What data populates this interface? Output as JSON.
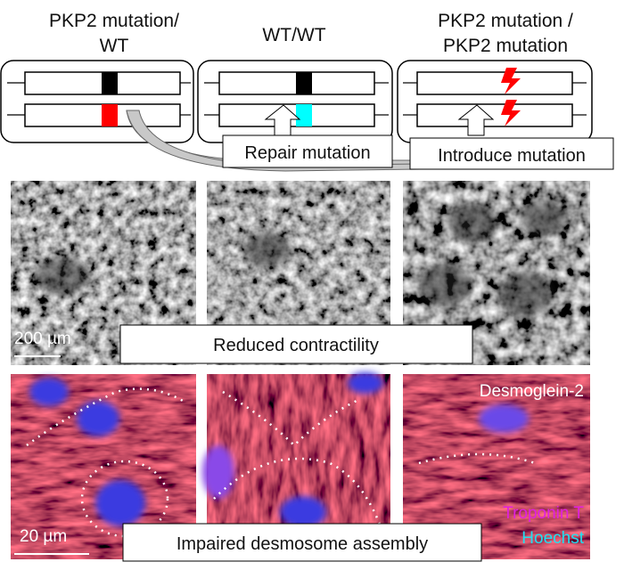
{
  "header": {
    "columns": [
      {
        "lines": [
          "PKP2 mutation/",
          "WT"
        ]
      },
      {
        "lines": [
          "WT/WT"
        ]
      },
      {
        "lines": [
          "PKP2 mutation /",
          "PKP2 mutation"
        ]
      }
    ]
  },
  "labels": {
    "repair": "Repair mutation",
    "introduce": "Introduce mutation"
  },
  "brightfield": {
    "scale_bar": "200 µm",
    "caption": "Reduced contractility"
  },
  "fluorescence": {
    "stains": [
      "Desmoglein-2",
      "Troponin T",
      "Hoechst"
    ],
    "scale_bar": "20 µm",
    "caption": "Impaired desmosome assembly"
  }
}
